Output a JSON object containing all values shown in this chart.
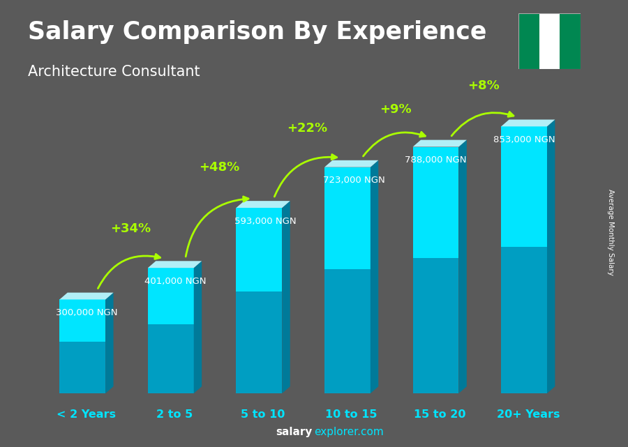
{
  "title": "Salary Comparison By Experience",
  "subtitle": "Architecture Consultant",
  "categories": [
    "< 2 Years",
    "2 to 5",
    "5 to 10",
    "10 to 15",
    "15 to 20",
    "20+ Years"
  ],
  "values": [
    300000,
    401000,
    593000,
    723000,
    788000,
    853000
  ],
  "labels": [
    "300,000 NGN",
    "401,000 NGN",
    "593,000 NGN",
    "723,000 NGN",
    "788,000 NGN",
    "853,000 NGN"
  ],
  "pct_labels": [
    "+34%",
    "+48%",
    "+22%",
    "+9%",
    "+8%"
  ],
  "bar_front_color": "#00bcd4",
  "bar_highlight_color": "#00e5ff",
  "bar_top_color": "#b2eff7",
  "bar_side_color": "#007a99",
  "title_color": "#ffffff",
  "subtitle_color": "#ffffff",
  "label_color": "#ffffff",
  "pct_color": "#aaff00",
  "xlabel_color": "#00e5ff",
  "footer_salary_color": "#ffffff",
  "footer_explorer_color": "#00e5ff",
  "ylabel_text": "Average Monthly Salary",
  "ylim": [
    0,
    1000000
  ],
  "bg_color": "#5a5a5a",
  "nigeria_green": "#008751",
  "nigeria_white": "#ffffff"
}
